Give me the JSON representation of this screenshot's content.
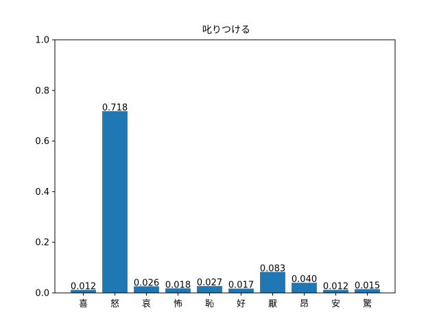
{
  "chart_data": {
    "type": "bar",
    "title": "叱りつける",
    "xlabel": "",
    "ylabel": "",
    "categories": [
      "喜",
      "怒",
      "哀",
      "怖",
      "恥",
      "好",
      "厭",
      "昂",
      "安",
      "驚"
    ],
    "values": [
      0.012,
      0.718,
      0.026,
      0.018,
      0.027,
      0.017,
      0.083,
      0.04,
      0.012,
      0.015
    ],
    "value_labels": [
      "0.012",
      "0.718",
      "0.026",
      "0.018",
      "0.027",
      "0.017",
      "0.083",
      "0.040",
      "0.012",
      "0.015"
    ],
    "ylim": [
      0,
      1.0
    ],
    "yticks": [
      0.0,
      0.2,
      0.4,
      0.6,
      0.8,
      1.0
    ],
    "ytick_labels": [
      "0.0",
      "0.2",
      "0.4",
      "0.6",
      "0.8",
      "1.0"
    ],
    "grid": false,
    "legend": "none",
    "bar_color": "#1f77b4"
  }
}
